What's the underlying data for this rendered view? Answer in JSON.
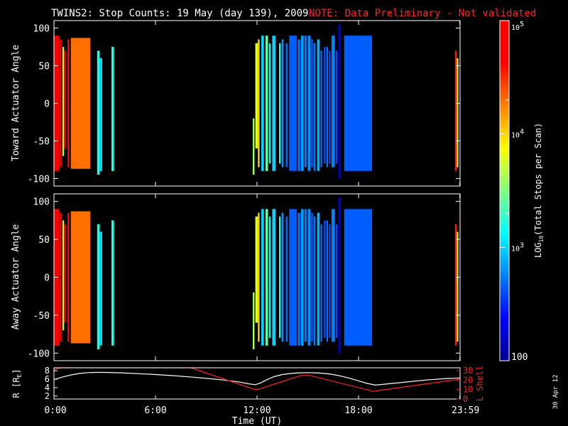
{
  "title": {
    "main": "TWINS2: Stop Counts: 19 May (day 139), 2009",
    "note": "NOTE: Data Preliminary - Not validated"
  },
  "footer_date": "30 Apr 12",
  "chart_data": [
    {
      "type": "heatmap",
      "name": "toward",
      "ylabel": "Toward Actuator Angle",
      "ylim": [
        -110,
        110
      ],
      "yticks": [
        100,
        50,
        0,
        -50,
        -100
      ],
      "xlim_hours": [
        0,
        24
      ],
      "stripes": [
        {
          "t0": 0.0,
          "t1": 0.3,
          "a0": -90,
          "a1": 90,
          "log": 4.85
        },
        {
          "t0": 0.35,
          "t1": 0.45,
          "a0": -85,
          "a1": 85,
          "log": 4.8
        },
        {
          "t0": 0.5,
          "t1": 0.6,
          "a0": -70,
          "a1": 75,
          "log": 3.6
        },
        {
          "t0": 0.6,
          "t1": 0.7,
          "a0": -60,
          "a1": 70,
          "log": 4.8
        },
        {
          "t0": 0.8,
          "t1": 0.9,
          "a0": -85,
          "a1": 85,
          "log": 4.7
        },
        {
          "t0": 1.0,
          "t1": 2.15,
          "a0": -87,
          "a1": 87,
          "log": 4.3
        },
        {
          "t0": 2.55,
          "t1": 2.7,
          "a0": -95,
          "a1": 70,
          "log": 3.2
        },
        {
          "t0": 2.7,
          "t1": 2.85,
          "a0": -90,
          "a1": 60,
          "log": 3.0
        },
        {
          "t0": 3.4,
          "t1": 3.55,
          "a0": -90,
          "a1": 75,
          "log": 3.2
        },
        {
          "t0": 11.75,
          "t1": 11.85,
          "a0": -95,
          "a1": -20,
          "log": 3.6
        },
        {
          "t0": 11.9,
          "t1": 12.05,
          "a0": -60,
          "a1": 80,
          "log": 3.8
        },
        {
          "t0": 12.05,
          "t1": 12.15,
          "a0": -85,
          "a1": 85,
          "log": 4.0
        },
        {
          "t0": 12.25,
          "t1": 12.4,
          "a0": -90,
          "a1": 90,
          "log": 3.0
        },
        {
          "t0": 12.5,
          "t1": 12.65,
          "a0": -90,
          "a1": 90,
          "log": 3.4
        },
        {
          "t0": 12.7,
          "t1": 12.8,
          "a0": -80,
          "a1": 80,
          "log": 3.1
        },
        {
          "t0": 12.9,
          "t1": 13.1,
          "a0": -90,
          "a1": 90,
          "log": 3.0
        },
        {
          "t0": 13.3,
          "t1": 13.4,
          "a0": -80,
          "a1": 80,
          "log": 3.2
        },
        {
          "t0": 13.45,
          "t1": 13.55,
          "a0": -85,
          "a1": 85,
          "log": 2.8
        },
        {
          "t0": 13.7,
          "t1": 13.8,
          "a0": -85,
          "a1": 80,
          "log": 2.7
        },
        {
          "t0": 13.9,
          "t1": 14.35,
          "a0": -90,
          "a1": 90,
          "log": 2.65
        },
        {
          "t0": 14.4,
          "t1": 14.55,
          "a0": -90,
          "a1": 85,
          "log": 2.7
        },
        {
          "t0": 14.6,
          "t1": 14.75,
          "a0": -90,
          "a1": 90,
          "log": 2.85
        },
        {
          "t0": 14.8,
          "t1": 14.95,
          "a0": -85,
          "a1": 90,
          "log": 2.7
        },
        {
          "t0": 15.0,
          "t1": 15.15,
          "a0": -90,
          "a1": 90,
          "log": 2.8
        },
        {
          "t0": 15.2,
          "t1": 15.3,
          "a0": -85,
          "a1": 85,
          "log": 2.65
        },
        {
          "t0": 15.35,
          "t1": 15.45,
          "a0": -90,
          "a1": 80,
          "log": 2.75
        },
        {
          "t0": 15.55,
          "t1": 15.7,
          "a0": -90,
          "a1": 85,
          "log": 2.9
        },
        {
          "t0": 15.75,
          "t1": 15.85,
          "a0": -85,
          "a1": 70,
          "log": 2.7
        },
        {
          "t0": 15.95,
          "t1": 16.05,
          "a0": -80,
          "a1": 75,
          "log": 2.6
        },
        {
          "t0": 16.1,
          "t1": 16.2,
          "a0": -85,
          "a1": 75,
          "log": 2.7
        },
        {
          "t0": 16.25,
          "t1": 16.35,
          "a0": -80,
          "a1": 70,
          "log": 2.6
        },
        {
          "t0": 16.4,
          "t1": 16.6,
          "a0": -85,
          "a1": 90,
          "log": 2.75
        },
        {
          "t0": 16.65,
          "t1": 16.75,
          "a0": -80,
          "a1": 70,
          "log": 2.6
        },
        {
          "t0": 16.8,
          "t1": 16.95,
          "a0": -100,
          "a1": 105,
          "log": 2.15
        },
        {
          "t0": 17.15,
          "t1": 18.8,
          "a0": -90,
          "a1": 90,
          "log": 2.65
        },
        {
          "t0": 23.7,
          "t1": 23.8,
          "a0": -90,
          "a1": 70,
          "log": 4.55
        },
        {
          "t0": 23.8,
          "t1": 23.9,
          "a0": -85,
          "a1": 60,
          "log": 3.8
        }
      ]
    },
    {
      "type": "heatmap",
      "name": "away",
      "ylabel": "Away Actuator Angle",
      "ylim": [
        -110,
        110
      ],
      "yticks": [
        100,
        50,
        0,
        -50,
        -100
      ],
      "xlim_hours": [
        0,
        24
      ],
      "stripes": [
        {
          "t0": 0.0,
          "t1": 0.3,
          "a0": -90,
          "a1": 90,
          "log": 4.85
        },
        {
          "t0": 0.35,
          "t1": 0.45,
          "a0": -85,
          "a1": 85,
          "log": 4.8
        },
        {
          "t0": 0.5,
          "t1": 0.6,
          "a0": -70,
          "a1": 75,
          "log": 3.6
        },
        {
          "t0": 0.6,
          "t1": 0.7,
          "a0": -60,
          "a1": 70,
          "log": 4.8
        },
        {
          "t0": 0.8,
          "t1": 0.9,
          "a0": -85,
          "a1": 85,
          "log": 4.7
        },
        {
          "t0": 1.0,
          "t1": 2.15,
          "a0": -87,
          "a1": 87,
          "log": 4.3
        },
        {
          "t0": 2.55,
          "t1": 2.7,
          "a0": -95,
          "a1": 70,
          "log": 3.2
        },
        {
          "t0": 2.7,
          "t1": 2.85,
          "a0": -90,
          "a1": 60,
          "log": 3.0
        },
        {
          "t0": 3.4,
          "t1": 3.55,
          "a0": -90,
          "a1": 75,
          "log": 3.2
        },
        {
          "t0": 11.75,
          "t1": 11.85,
          "a0": -95,
          "a1": -20,
          "log": 3.6
        },
        {
          "t0": 11.9,
          "t1": 12.05,
          "a0": -60,
          "a1": 80,
          "log": 3.8
        },
        {
          "t0": 12.05,
          "t1": 12.15,
          "a0": -85,
          "a1": 85,
          "log": 4.0
        },
        {
          "t0": 12.25,
          "t1": 12.4,
          "a0": -90,
          "a1": 90,
          "log": 3.0
        },
        {
          "t0": 12.5,
          "t1": 12.65,
          "a0": -90,
          "a1": 90,
          "log": 3.4
        },
        {
          "t0": 12.7,
          "t1": 12.8,
          "a0": -80,
          "a1": 80,
          "log": 3.1
        },
        {
          "t0": 12.9,
          "t1": 13.1,
          "a0": -90,
          "a1": 90,
          "log": 3.0
        },
        {
          "t0": 13.3,
          "t1": 13.4,
          "a0": -80,
          "a1": 80,
          "log": 3.2
        },
        {
          "t0": 13.45,
          "t1": 13.55,
          "a0": -85,
          "a1": 85,
          "log": 2.8
        },
        {
          "t0": 13.7,
          "t1": 13.8,
          "a0": -85,
          "a1": 80,
          "log": 2.7
        },
        {
          "t0": 13.9,
          "t1": 14.35,
          "a0": -90,
          "a1": 90,
          "log": 2.65
        },
        {
          "t0": 14.4,
          "t1": 14.55,
          "a0": -90,
          "a1": 85,
          "log": 2.7
        },
        {
          "t0": 14.6,
          "t1": 14.75,
          "a0": -90,
          "a1": 90,
          "log": 2.85
        },
        {
          "t0": 14.8,
          "t1": 14.95,
          "a0": -85,
          "a1": 90,
          "log": 2.7
        },
        {
          "t0": 15.0,
          "t1": 15.15,
          "a0": -90,
          "a1": 90,
          "log": 2.8
        },
        {
          "t0": 15.2,
          "t1": 15.3,
          "a0": -85,
          "a1": 85,
          "log": 2.65
        },
        {
          "t0": 15.35,
          "t1": 15.45,
          "a0": -90,
          "a1": 80,
          "log": 2.75
        },
        {
          "t0": 15.55,
          "t1": 15.7,
          "a0": -90,
          "a1": 85,
          "log": 2.9
        },
        {
          "t0": 15.75,
          "t1": 15.85,
          "a0": -85,
          "a1": 70,
          "log": 2.7
        },
        {
          "t0": 15.95,
          "t1": 16.05,
          "a0": -80,
          "a1": 75,
          "log": 2.6
        },
        {
          "t0": 16.1,
          "t1": 16.2,
          "a0": -85,
          "a1": 75,
          "log": 2.7
        },
        {
          "t0": 16.25,
          "t1": 16.35,
          "a0": -80,
          "a1": 70,
          "log": 2.6
        },
        {
          "t0": 16.4,
          "t1": 16.6,
          "a0": -85,
          "a1": 90,
          "log": 2.75
        },
        {
          "t0": 16.65,
          "t1": 16.75,
          "a0": -80,
          "a1": 70,
          "log": 2.6
        },
        {
          "t0": 16.8,
          "t1": 16.95,
          "a0": -100,
          "a1": 105,
          "log": 2.15
        },
        {
          "t0": 17.15,
          "t1": 18.8,
          "a0": -90,
          "a1": 90,
          "log": 2.65
        },
        {
          "t0": 23.7,
          "t1": 23.8,
          "a0": -90,
          "a1": 70,
          "log": 4.55
        },
        {
          "t0": 23.8,
          "t1": 23.9,
          "a0": -85,
          "a1": 60,
          "log": 3.8
        }
      ]
    },
    {
      "type": "line",
      "name": "orbit",
      "xlabel": "Time (UT)",
      "xticks": [
        "0:00",
        "6:00",
        "12:00",
        "18:00",
        "23:59"
      ],
      "xtick_hours": [
        0,
        6,
        12,
        18,
        23.983
      ],
      "ylabel": "R [R",
      "ylabel_sub": "E",
      "ylabel_end": "]",
      "ylim": [
        1.3,
        8.7
      ],
      "yticks": [
        "8",
        "6",
        "4",
        "2"
      ],
      "ytick_values": [
        8,
        6,
        4,
        2
      ],
      "y2label": "L Shell",
      "y2lim": [
        0,
        33
      ],
      "y2ticks": [
        "30",
        "20",
        "10",
        "0"
      ],
      "y2tick_values": [
        30,
        20,
        10,
        0
      ],
      "series": [
        {
          "axis": "left",
          "color": "#ffffff",
          "x": [
            0,
            0.5,
            1,
            1.5,
            2,
            2.5,
            3,
            4,
            5,
            6,
            7,
            8,
            9,
            10,
            11,
            11.5,
            11.9,
            12.2,
            12.6,
            13,
            13.5,
            14,
            14.5,
            15,
            15.5,
            16,
            16.5,
            17,
            17.5,
            18,
            18.5,
            19,
            20,
            21,
            22,
            23,
            23.98
          ],
          "y": [
            5.9,
            6.5,
            7.0,
            7.35,
            7.55,
            7.6,
            7.6,
            7.5,
            7.3,
            7.1,
            6.85,
            6.55,
            6.2,
            5.8,
            5.3,
            4.9,
            4.7,
            5.1,
            5.9,
            6.6,
            7.1,
            7.35,
            7.5,
            7.55,
            7.5,
            7.35,
            7.1,
            6.7,
            6.2,
            5.6,
            5.0,
            4.6,
            5.0,
            5.4,
            5.8,
            6.1,
            6.3
          ]
        },
        {
          "axis": "right",
          "color": "#ff2020",
          "x": [
            0,
            0.4,
            8.1,
            11.9,
            12.2,
            14.6,
            15.1,
            18.9,
            19.2,
            23.98
          ],
          "y": [
            31,
            33,
            33,
            10,
            11,
            25,
            25,
            8,
            9,
            21
          ]
        }
      ]
    }
  ],
  "colorbar": {
    "label": "LOG",
    "label_sub": "10",
    "label_end": "(Total Stops per Scan)",
    "log_range": [
      2,
      5
    ],
    "ticks": [
      {
        "base": "10",
        "exp": "5",
        "log": 5
      },
      {
        "base": "10",
        "exp": "4",
        "log": 4
      },
      {
        "base": "10",
        "exp": "3",
        "log": 3
      },
      {
        "base": "100",
        "exp": "",
        "log": 2
      }
    ],
    "minor_logs": [
      4.3,
      3.3
    ]
  }
}
